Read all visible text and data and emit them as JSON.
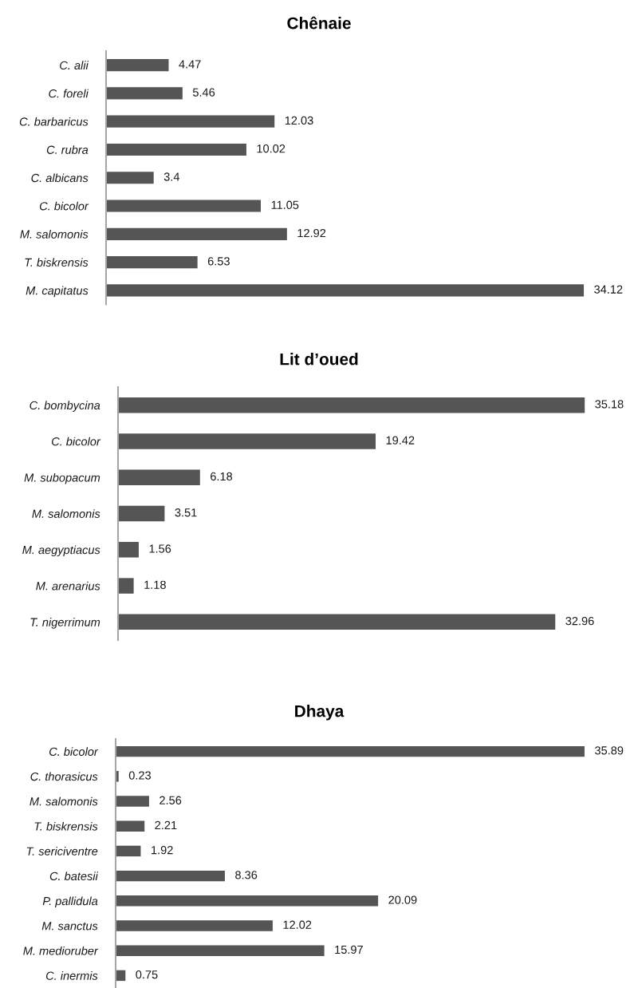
{
  "chart_data": [
    {
      "type": "bar",
      "orientation": "horizontal",
      "title": "Chênaie",
      "categories": [
        "C. alii",
        "C. foreli",
        "C. barbaricus",
        "C. rubra",
        "C. albicans",
        "C. bicolor",
        "M. salomonis",
        "T. biskrensis",
        "M. capitatus"
      ],
      "values": [
        4.47,
        5.46,
        12.03,
        10.02,
        3.4,
        11.05,
        12.92,
        6.53,
        34.12
      ],
      "color": "#555555",
      "data_labels": true,
      "tick_labels": "y"
    },
    {
      "type": "bar",
      "orientation": "horizontal",
      "title": "Lit d’oued",
      "categories": [
        "C. bombycina",
        "C. bicolor",
        "M. subopacum",
        "M. salomonis",
        "M. aegyptiacus",
        "M. arenarius",
        "T. nigerrimum"
      ],
      "values": [
        35.18,
        19.42,
        6.18,
        3.51,
        1.56,
        1.18,
        32.96
      ],
      "color": "#555555",
      "data_labels": true,
      "tick_labels": "y"
    },
    {
      "type": "bar",
      "orientation": "horizontal",
      "title": "Dhaya",
      "categories": [
        "C. bicolor",
        "C. thorasicus",
        "M. salomonis",
        "T. biskrensis",
        "T. sericiventre",
        "C. batesii",
        "P. pallidula",
        "M. sanctus",
        "M. medioruber",
        "C. inermis"
      ],
      "values": [
        35.89,
        0.23,
        2.56,
        2.21,
        1.92,
        8.36,
        20.09,
        12.02,
        15.97,
        0.75
      ],
      "color": "#555555",
      "data_labels": true,
      "tick_labels": "y"
    }
  ]
}
